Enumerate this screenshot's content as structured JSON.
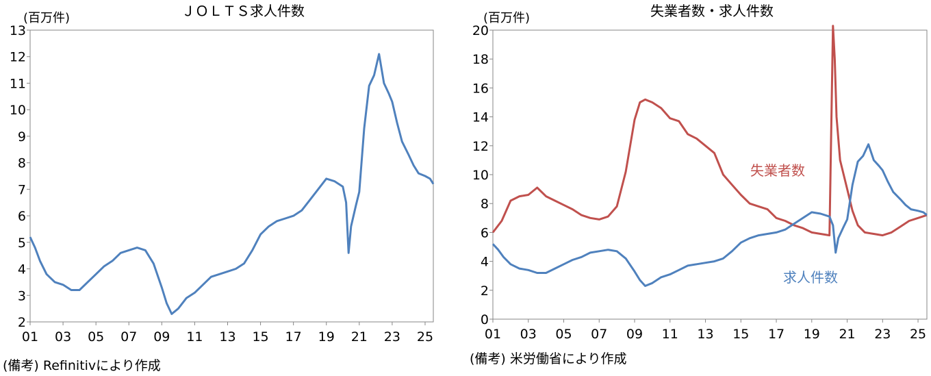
{
  "colors": {
    "blue": "#4F81BD",
    "red": "#C0504D",
    "axis": "#868686"
  },
  "left": {
    "title": "ＪＯＬＴＳ求人件数",
    "unit": "(百万件)",
    "source": "(備考) Refinitivにより作成",
    "yticks": [
      "13",
      "12",
      "11",
      "10",
      "9",
      "8",
      "7",
      "6",
      "5",
      "4",
      "3",
      "2"
    ],
    "xticks": [
      "01",
      "03",
      "05",
      "07",
      "09",
      "11",
      "13",
      "15",
      "17",
      "19",
      "21",
      "23",
      "25"
    ]
  },
  "right": {
    "title": "失業者数・求人件数",
    "unit": "(百万件)",
    "source": "(備考) 米労働省により作成",
    "label_unemployed": "失業者数",
    "label_openings": "求人件数",
    "yticks": [
      "20",
      "18",
      "16",
      "14",
      "12",
      "10",
      "8",
      "6",
      "4",
      "2",
      "0"
    ],
    "xticks": [
      "01",
      "03",
      "05",
      "07",
      "09",
      "11",
      "13",
      "15",
      "17",
      "19",
      "21",
      "23",
      "25"
    ]
  },
  "chart_data": [
    {
      "type": "line",
      "title": "ＪＯＬＴＳ求人件数",
      "ylabel": "(百万件)",
      "ylim": [
        2,
        13
      ],
      "x_range": [
        2001.0,
        2025.5
      ],
      "series": [
        {
          "name": "",
          "color": "#4F81BD",
          "x": [
            2001.0,
            2001.3,
            2001.6,
            2002.0,
            2002.5,
            2003.0,
            2003.5,
            2004.0,
            2004.5,
            2005.0,
            2005.5,
            2006.0,
            2006.5,
            2007.0,
            2007.5,
            2008.0,
            2008.5,
            2009.0,
            2009.3,
            2009.6,
            2010.0,
            2010.5,
            2011.0,
            2011.5,
            2012.0,
            2012.5,
            2013.0,
            2013.5,
            2014.0,
            2014.5,
            2015.0,
            2015.5,
            2016.0,
            2016.5,
            2017.0,
            2017.5,
            2018.0,
            2018.5,
            2019.0,
            2019.5,
            2020.0,
            2020.2,
            2020.35,
            2020.5,
            2020.8,
            2021.0,
            2021.3,
            2021.6,
            2021.9,
            2022.2,
            2022.5,
            2022.8,
            2023.0,
            2023.3,
            2023.6,
            2024.0,
            2024.3,
            2024.6,
            2025.0,
            2025.3,
            2025.5
          ],
          "y": [
            5.2,
            4.8,
            4.3,
            3.8,
            3.5,
            3.4,
            3.2,
            3.2,
            3.5,
            3.8,
            4.1,
            4.3,
            4.6,
            4.7,
            4.8,
            4.7,
            4.2,
            3.3,
            2.7,
            2.3,
            2.5,
            2.9,
            3.1,
            3.4,
            3.7,
            3.8,
            3.9,
            4.0,
            4.2,
            4.7,
            5.3,
            5.6,
            5.8,
            5.9,
            6.0,
            6.2,
            6.6,
            7.0,
            7.4,
            7.3,
            7.1,
            6.5,
            4.6,
            5.6,
            6.4,
            6.9,
            9.3,
            10.9,
            11.3,
            12.1,
            11.0,
            10.6,
            10.3,
            9.5,
            8.8,
            8.3,
            7.9,
            7.6,
            7.5,
            7.4,
            7.2
          ]
        }
      ]
    },
    {
      "type": "line",
      "title": "失業者数・求人件数",
      "ylabel": "(百万件)",
      "ylim": [
        0,
        20
      ],
      "x_range": [
        2001.0,
        2025.5
      ],
      "series": [
        {
          "name": "失業者数",
          "color": "#C0504D",
          "x": [
            2001.0,
            2001.5,
            2002.0,
            2002.5,
            2003.0,
            2003.5,
            2004.0,
            2004.5,
            2005.0,
            2005.5,
            2006.0,
            2006.5,
            2007.0,
            2007.5,
            2008.0,
            2008.5,
            2009.0,
            2009.3,
            2009.6,
            2010.0,
            2010.5,
            2011.0,
            2011.5,
            2012.0,
            2012.5,
            2013.0,
            2013.5,
            2014.0,
            2014.5,
            2015.0,
            2015.5,
            2016.0,
            2016.5,
            2017.0,
            2017.5,
            2018.0,
            2018.5,
            2019.0,
            2019.5,
            2020.0,
            2020.2,
            2020.3,
            2020.4,
            2020.6,
            2020.8,
            2021.0,
            2021.3,
            2021.6,
            2022.0,
            2022.5,
            2023.0,
            2023.5,
            2024.0,
            2024.5,
            2025.0,
            2025.5
          ],
          "y": [
            6.0,
            6.8,
            8.2,
            8.5,
            8.6,
            9.1,
            8.5,
            8.2,
            7.9,
            7.6,
            7.2,
            7.0,
            6.9,
            7.1,
            7.8,
            10.2,
            13.8,
            15.0,
            15.2,
            15.0,
            14.6,
            13.9,
            13.7,
            12.8,
            12.5,
            12.0,
            11.5,
            10.0,
            9.3,
            8.6,
            8.0,
            7.8,
            7.6,
            7.0,
            6.8,
            6.5,
            6.3,
            6.0,
            5.9,
            5.8,
            20.3,
            18.0,
            14.0,
            11.0,
            10.0,
            9.0,
            7.5,
            6.5,
            6.0,
            5.9,
            5.8,
            6.0,
            6.4,
            6.8,
            7.0,
            7.2
          ]
        },
        {
          "name": "求人件数",
          "color": "#4F81BD",
          "x": [
            2001.0,
            2001.3,
            2001.6,
            2002.0,
            2002.5,
            2003.0,
            2003.5,
            2004.0,
            2004.5,
            2005.0,
            2005.5,
            2006.0,
            2006.5,
            2007.0,
            2007.5,
            2008.0,
            2008.5,
            2009.0,
            2009.3,
            2009.6,
            2010.0,
            2010.5,
            2011.0,
            2011.5,
            2012.0,
            2012.5,
            2013.0,
            2013.5,
            2014.0,
            2014.5,
            2015.0,
            2015.5,
            2016.0,
            2016.5,
            2017.0,
            2017.5,
            2018.0,
            2018.5,
            2019.0,
            2019.5,
            2020.0,
            2020.2,
            2020.35,
            2020.5,
            2020.8,
            2021.0,
            2021.3,
            2021.6,
            2021.9,
            2022.2,
            2022.5,
            2022.8,
            2023.0,
            2023.3,
            2023.6,
            2024.0,
            2024.3,
            2024.6,
            2025.0,
            2025.3,
            2025.5
          ],
          "y": [
            5.2,
            4.8,
            4.3,
            3.8,
            3.5,
            3.4,
            3.2,
            3.2,
            3.5,
            3.8,
            4.1,
            4.3,
            4.6,
            4.7,
            4.8,
            4.7,
            4.2,
            3.3,
            2.7,
            2.3,
            2.5,
            2.9,
            3.1,
            3.4,
            3.7,
            3.8,
            3.9,
            4.0,
            4.2,
            4.7,
            5.3,
            5.6,
            5.8,
            5.9,
            6.0,
            6.2,
            6.6,
            7.0,
            7.4,
            7.3,
            7.1,
            6.5,
            4.6,
            5.6,
            6.4,
            6.9,
            9.3,
            10.9,
            11.3,
            12.1,
            11.0,
            10.6,
            10.3,
            9.5,
            8.8,
            8.3,
            7.9,
            7.6,
            7.5,
            7.4,
            7.2
          ]
        }
      ]
    }
  ]
}
